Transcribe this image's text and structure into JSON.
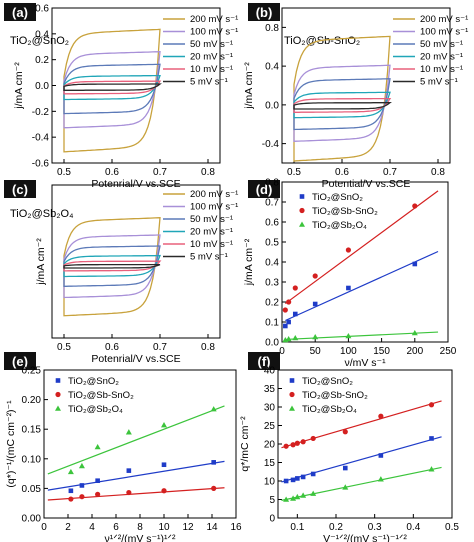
{
  "chart_data": [
    {
      "panel": "(a)",
      "type": "line",
      "sample": "TiO₂@SnO₂",
      "xlabel": "Potenrial/V vs.SCE",
      "ylabel": "j/mA cm⁻²",
      "xlim": [
        0.475,
        0.825
      ],
      "ylim": [
        -0.6,
        0.6
      ],
      "xticks": [
        "0.5",
        "0.6",
        "0.7",
        "0.8"
      ],
      "yticks": [
        "-0.6",
        "-0.4",
        "-0.2",
        "0.0",
        "0.2",
        "0.4",
        "0.6"
      ],
      "series": [
        {
          "name": "200 mV s⁻¹",
          "color": "#c8a23c",
          "upper": 0.4,
          "lower": -0.47
        },
        {
          "name": "100 mV s⁻¹",
          "color": "#a890d8",
          "upper": 0.24,
          "lower": -0.3
        },
        {
          "name": "50 mV s⁻¹",
          "color": "#5c7ab8",
          "upper": 0.15,
          "lower": -0.2
        },
        {
          "name": "20 mV s⁻¹",
          "color": "#20a6b8",
          "upper": 0.07,
          "lower": -0.1
        },
        {
          "name": "10 mV s⁻¹",
          "color": "#e8607c",
          "upper": 0.03,
          "lower": -0.06
        },
        {
          "name": "5 mV s⁻¹",
          "color": "#2a2a2a",
          "upper": 0.01,
          "lower": -0.035
        }
      ]
    },
    {
      "panel": "(b)",
      "type": "line",
      "sample": "TiO₂@Sb-SnO₂",
      "xlabel": "Potential/V vs.SCE",
      "ylabel": "j/mA cm⁻²",
      "xlim": [
        0.475,
        0.825
      ],
      "ylim": [
        -0.6,
        1.0
      ],
      "xticks": [
        "0.5",
        "0.6",
        "0.7",
        "0.8"
      ],
      "yticks": [
        "-0.4",
        "0.0",
        "0.4",
        "0.8"
      ],
      "series": [
        {
          "name": "200 mV s⁻¹",
          "color": "#c8a23c",
          "upper": 0.66,
          "lower": -0.52
        },
        {
          "name": "100 mV s⁻¹",
          "color": "#a890d8",
          "upper": 0.38,
          "lower": -0.34
        },
        {
          "name": "50 mV s⁻¹",
          "color": "#5c7ab8",
          "upper": 0.25,
          "lower": -0.23
        },
        {
          "name": "20 mV s⁻¹",
          "color": "#20a6b8",
          "upper": 0.12,
          "lower": -0.12
        },
        {
          "name": "10 mV s⁻¹",
          "color": "#e8607c",
          "upper": 0.06,
          "lower": -0.07
        },
        {
          "name": "5 mV s⁻¹",
          "color": "#2a2a2a",
          "upper": 0.02,
          "lower": -0.04
        }
      ]
    },
    {
      "panel": "(c)",
      "type": "line",
      "sample": "TiO₂@Sb₂O₄",
      "xlabel": "Potenrial/V vs.SCE",
      "ylabel": "j/mA cm⁻²",
      "xlim": [
        0.475,
        0.825
      ],
      "ylim": [
        -0.12,
        0.12
      ],
      "xticks": [
        "0.5",
        "0.6",
        "0.7",
        "0.8"
      ],
      "yticks": [],
      "series": [
        {
          "name": "200 mV s⁻¹",
          "color": "#c8a23c",
          "upper": 0.063,
          "lower": -0.078
        },
        {
          "name": "100 mV s⁻¹",
          "color": "#a890d8",
          "upper": 0.038,
          "lower": -0.052
        },
        {
          "name": "50 mV s⁻¹",
          "color": "#5c7ab8",
          "upper": 0.022,
          "lower": -0.036
        },
        {
          "name": "20 mV s⁻¹",
          "color": "#20a6b8",
          "upper": 0.008,
          "lower": -0.022
        },
        {
          "name": "10 mV s⁻¹",
          "color": "#e8607c",
          "upper": 0.0,
          "lower": -0.014
        },
        {
          "name": "5 mV s⁻¹",
          "color": "#2a2a2a",
          "upper": -0.005,
          "lower": -0.01
        }
      ]
    },
    {
      "panel": "(d)",
      "type": "scatter",
      "xlabel": "ν/mV s⁻¹",
      "ylabel": "j/mA cm⁻²",
      "xlim": [
        0,
        250
      ],
      "ylim": [
        0.0,
        0.8
      ],
      "xticks": [
        "0",
        "50",
        "100",
        "150",
        "200",
        "250"
      ],
      "yticks": [
        "0.0",
        "0.1",
        "0.2",
        "0.3",
        "0.4",
        "0.5",
        "0.6",
        "0.7",
        "0.8"
      ],
      "series": [
        {
          "name": "TiO₂@SnO₂",
          "color": "#1f3cc8",
          "marker": "square",
          "x": [
            5,
            10,
            20,
            50,
            100,
            200
          ],
          "y": [
            0.08,
            0.1,
            0.14,
            0.19,
            0.27,
            0.39
          ],
          "fit": [
            0.1,
            0.0015
          ]
        },
        {
          "name": "TiO₂@Sb-SnO₂",
          "color": "#d42020",
          "marker": "circle",
          "x": [
            5,
            10,
            20,
            50,
            100,
            200
          ],
          "y": [
            0.16,
            0.2,
            0.27,
            0.33,
            0.46,
            0.68
          ],
          "fit": [
            0.18,
            0.00245
          ]
        },
        {
          "name": "TiO₂@Sb₂O₄",
          "color": "#3cc43c",
          "marker": "triangle",
          "x": [
            5,
            10,
            20,
            50,
            100,
            200
          ],
          "y": [
            0.01,
            0.015,
            0.02,
            0.025,
            0.03,
            0.045
          ],
          "fit": [
            0.012,
            0.00016
          ]
        }
      ]
    },
    {
      "panel": "(e)",
      "type": "scatter",
      "xlabel": "ν¹ᐟ²/(mV s⁻¹)¹ᐟ²",
      "ylabel": "(q*)⁻¹/(mC cm⁻²)⁻¹",
      "xlim": [
        0,
        16
      ],
      "ylim": [
        0.0,
        0.25
      ],
      "xticks": [
        "0",
        "2",
        "4",
        "6",
        "8",
        "10",
        "12",
        "14",
        "16"
      ],
      "yticks": [
        "0.00",
        "0.05",
        "0.10",
        "0.15",
        "0.20",
        "0.25"
      ],
      "series": [
        {
          "name": "TiO₂@SnO₂",
          "color": "#1f3cc8",
          "marker": "square",
          "x": [
            2.24,
            3.16,
            4.47,
            7.07,
            10.0,
            14.14
          ],
          "y": [
            0.046,
            0.055,
            0.063,
            0.08,
            0.09,
            0.094
          ],
          "fit": [
            0.046,
            0.0033
          ]
        },
        {
          "name": "TiO₂@Sb-SnO₂",
          "color": "#d42020",
          "marker": "circle",
          "x": [
            2.24,
            3.16,
            4.47,
            7.07,
            10.0,
            14.14
          ],
          "y": [
            0.032,
            0.036,
            0.04,
            0.043,
            0.046,
            0.05
          ],
          "fit": [
            0.03,
            0.0014
          ]
        },
        {
          "name": "TiO₂@Sb₂O₄",
          "color": "#3cc43c",
          "marker": "triangle",
          "x": [
            2.24,
            3.16,
            4.47,
            7.07,
            10.0,
            14.14
          ],
          "y": [
            0.078,
            0.088,
            0.12,
            0.145,
            0.157,
            0.184
          ],
          "fit": [
            0.072,
            0.0078
          ]
        }
      ]
    },
    {
      "panel": "(f)",
      "type": "scatter",
      "xlabel": "V⁻¹ᐟ²/(mV s⁻¹)⁻¹ᐟ²",
      "ylabel": "q*/mC cm⁻²",
      "xlim": [
        0.05,
        0.5
      ],
      "ylim": [
        0,
        40
      ],
      "xticks": [
        "0.1",
        "0.2",
        "0.3",
        "0.4",
        "0.5"
      ],
      "yticks": [
        "0",
        "5",
        "10",
        "15",
        "20",
        "25",
        "30",
        "35",
        "40"
      ],
      "series": [
        {
          "name": "TiO₂@SnO₂",
          "color": "#1f3cc8",
          "marker": "square",
          "x": [
            0.071,
            0.089,
            0.1,
            0.115,
            0.141,
            0.224,
            0.316,
            0.447
          ],
          "y": [
            10.0,
            10.3,
            10.7,
            11.1,
            11.9,
            13.5,
            16.9,
            21.5
          ],
          "fit": [
            8.0,
            29.5
          ]
        },
        {
          "name": "TiO₂@Sb-SnO₂",
          "color": "#d42020",
          "marker": "circle",
          "x": [
            0.071,
            0.089,
            0.1,
            0.115,
            0.141,
            0.224,
            0.316,
            0.447
          ],
          "y": [
            19.4,
            19.8,
            20.2,
            20.6,
            21.5,
            23.3,
            27.5,
            30.6
          ],
          "fit": [
            17.2,
            30.5
          ]
        },
        {
          "name": "TiO₂@Sb₂O₄",
          "color": "#3cc43c",
          "marker": "triangle",
          "x": [
            0.071,
            0.089,
            0.1,
            0.115,
            0.141,
            0.224,
            0.316,
            0.447
          ],
          "y": [
            5.0,
            5.3,
            5.7,
            6.1,
            6.6,
            8.3,
            10.5,
            13.2
          ],
          "fit": [
            3.5,
            21.5
          ]
        }
      ]
    }
  ]
}
